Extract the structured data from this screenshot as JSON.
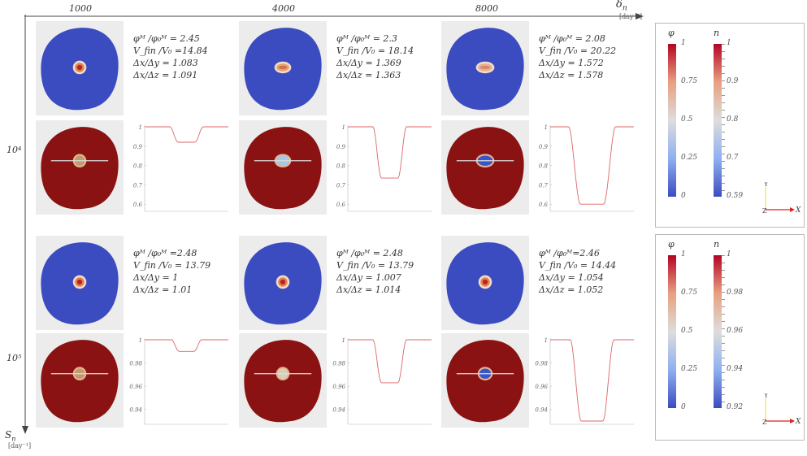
{
  "axes": {
    "x_label": "δ",
    "x_label_sub": "n",
    "x_unit": "[day⁻¹]",
    "y_label": "S",
    "y_label_sub": "n",
    "y_unit": "[day⁻¹]"
  },
  "columns": [
    "1000",
    "4000",
    "8000"
  ],
  "rows": [
    {
      "label": "10⁴",
      "cells": [
        {
          "stats": [
            "φᴹ /φ₀ᴹ = 2.45",
            "V_fin /V₀ =14.84",
            "Δx/Δy = 1.083",
            "Δx/Δz = 1.091"
          ],
          "core": "#e0824f",
          "core_center": "#b22",
          "inner": "#c09a70",
          "dip": 0.92
        },
        {
          "stats": [
            "φᴹ /φ₀ᴹ = 2.3",
            "V_fin /V₀ = 18.14",
            "Δx/Δy = 1.369",
            "Δx/Δz = 1.363"
          ],
          "core": "#e8a070",
          "core_center": "#d0704a",
          "inner": "#a9c6e6",
          "dip": 0.735
        },
        {
          "stats": [
            "φᴹ /φ₀ᴹ = 2.08",
            "V_fin /V₀ = 20.22",
            "Δx/Δy = 1.572",
            "Δx/Δz = 1.578"
          ],
          "core": "#e9b090",
          "core_center": "#d48a68",
          "inner": "#3a55c8",
          "dip": 0.6
        }
      ],
      "plot_ticks": [
        "1",
        "0.9",
        "0.8",
        "0.7",
        "0.6"
      ]
    },
    {
      "label": "10⁵",
      "cells": [
        {
          "stats": [
            "φᴹ /φ₀ᴹ =2.48",
            "V_fin /V₀ = 13.79",
            "Δx/Δy = 1",
            "Δx/Δz = 1.01"
          ],
          "core": "#e0824f",
          "core_center": "#b22",
          "inner": "#c09a70",
          "dip": 0.99
        },
        {
          "stats": [
            "φᴹ /φ₀ᴹ = 2.48",
            "V_fin /V₀ = 13.79",
            "Δx/Δy = 1.007",
            "Δx/Δz = 1.014"
          ],
          "core": "#e0824f",
          "core_center": "#b22",
          "inner": "#d6d0b8",
          "dip": 0.963
        },
        {
          "stats": [
            "φᴹ /φ₀ᴹ=2.46",
            "V_fin /V₀ = 14.44",
            "Δx/Δy = 1.054",
            "Δx/Δz = 1.052"
          ],
          "core": "#e0824f",
          "core_center": "#b22",
          "inner": "#3a55c8",
          "dip": 0.93
        }
      ],
      "plot_ticks": [
        "1",
        "0.98",
        "0.96",
        "0.94"
      ]
    }
  ],
  "legends": [
    {
      "phi_title": "φ",
      "n_title": "n",
      "phi_ticks": [
        "1",
        "0.75",
        "0.5",
        "0.25",
        "0"
      ],
      "n_ticks": [
        "1",
        "0.9",
        "0.8",
        "0.7",
        "0.59"
      ],
      "axis_y": "Y",
      "axis_x": "X",
      "axis_z": "Z"
    },
    {
      "phi_title": "φ",
      "n_title": "n",
      "phi_ticks": [
        "1",
        "0.75",
        "0.5",
        "0.25",
        "0"
      ],
      "n_ticks": [
        "1",
        "0.98",
        "0.96",
        "0.94",
        "0.92"
      ],
      "axis_y": "Y",
      "axis_x": "X",
      "axis_z": "Z"
    }
  ],
  "colors": {
    "blue": "#3b4cc0",
    "red": "#8a1212",
    "colormap_top": "#b40426",
    "colormap_mid": "#dddddd",
    "colormap_bottom": "#3b4cc0",
    "curve": "#d66",
    "arrow": "#444"
  }
}
